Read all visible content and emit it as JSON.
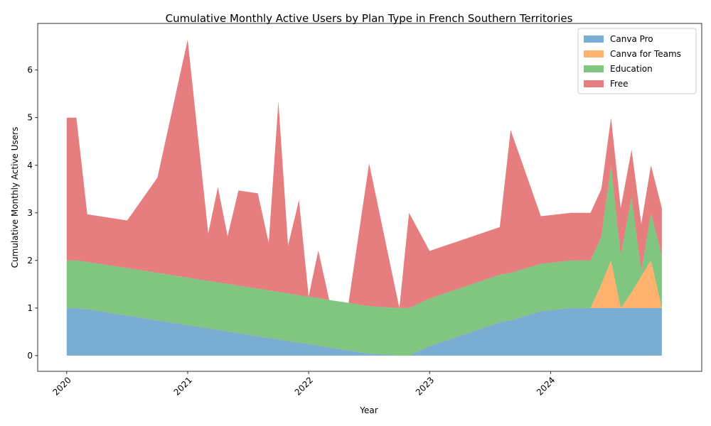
{
  "chart_data": {
    "type": "area",
    "stacked": true,
    "title": "Cumulative Monthly Active Users by Plan Type in French Southern Territories",
    "xlabel": "Year",
    "ylabel": "Cumulative Monthly Active Users",
    "xlim": [
      2019.76,
      2025.25
    ],
    "ylim": [
      -0.33,
      6.98
    ],
    "x_ticks": [
      {
        "label": "2020",
        "value": 2020
      },
      {
        "label": "2021",
        "value": 2021
      },
      {
        "label": "2022",
        "value": 2022
      },
      {
        "label": "2023",
        "value": 2023
      },
      {
        "label": "2024",
        "value": 2024
      }
    ],
    "y_ticks": [
      0,
      1,
      2,
      3,
      4,
      5,
      6
    ],
    "grid": false,
    "legend_position": "top-right",
    "x": [
      2020.0,
      2020.08,
      2020.17,
      2020.5,
      2020.75,
      2021.0,
      2021.17,
      2021.25,
      2021.33,
      2021.42,
      2021.58,
      2021.67,
      2021.75,
      2021.83,
      2021.92,
      2022.0,
      2022.08,
      2022.17,
      2022.33,
      2022.5,
      2022.75,
      2022.83,
      2023.0,
      2023.58,
      2023.67,
      2023.92,
      2024.17,
      2024.33,
      2024.42,
      2024.5,
      2024.58,
      2024.67,
      2024.75,
      2024.83,
      2024.92
    ],
    "series": [
      {
        "name": "Canva Pro",
        "color": "#1f77b4",
        "values": [
          1.0,
          1.0,
          0.97,
          0.84,
          0.74,
          0.64,
          0.57,
          0.54,
          0.51,
          0.47,
          0.41,
          0.37,
          0.34,
          0.31,
          0.27,
          0.24,
          0.21,
          0.17,
          0.11,
          0.04,
          0.0,
          0.0,
          0.2,
          0.7,
          0.74,
          0.93,
          1.0,
          1.0,
          1.0,
          1.0,
          1.0,
          1.0,
          1.0,
          1.0,
          1.0
        ]
      },
      {
        "name": "Canva for Teams",
        "color": "#ff7f0e",
        "values": [
          0,
          0,
          0,
          0,
          0,
          0,
          0,
          0,
          0,
          0,
          0,
          0,
          0,
          0,
          0,
          0,
          0,
          0,
          0,
          0,
          0,
          0,
          0,
          0,
          0,
          0,
          0,
          0,
          0.5,
          1.0,
          0,
          0.33,
          0.67,
          1.0,
          0
        ]
      },
      {
        "name": "Education",
        "color": "#2ca02c",
        "values": [
          1.0,
          1.0,
          1.0,
          1.0,
          1.0,
          1.0,
          1.0,
          1.0,
          1.0,
          1.0,
          1.0,
          1.0,
          1.0,
          1.0,
          1.0,
          1.0,
          1.0,
          1.0,
          1.0,
          1.0,
          1.0,
          1.0,
          1.0,
          1.0,
          1.0,
          1.0,
          1.0,
          1.0,
          1.0,
          2.0,
          1.1,
          2.0,
          0.1,
          1.0,
          1.1
        ]
      },
      {
        "name": "Free",
        "color": "#d62728",
        "values": [
          3.0,
          3.0,
          1.0,
          1.0,
          2.0,
          5.0,
          1.0,
          2.0,
          1.0,
          2.0,
          2.0,
          1.0,
          4.0,
          1.0,
          2.0,
          0.0,
          1.0,
          0.0,
          0.0,
          3.0,
          0.0,
          2.0,
          1.0,
          1.0,
          3.0,
          1.0,
          1.0,
          1.0,
          1.0,
          1.0,
          1.0,
          1.0,
          1.0,
          1.0,
          1.0
        ]
      }
    ]
  }
}
